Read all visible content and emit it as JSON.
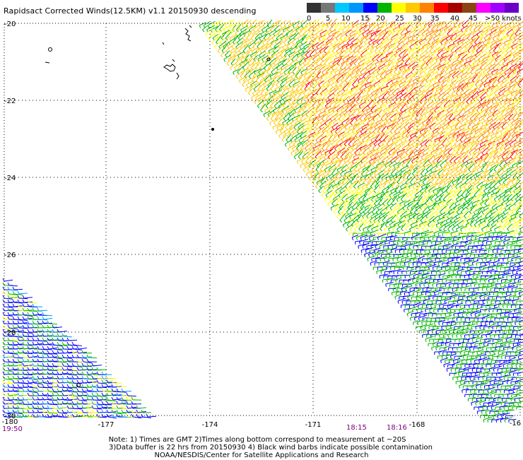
{
  "title": "Rapidsact Corrected Winds(12.5KM) v1.1 20150930 descending",
  "legend": {
    "colors": [
      "#333333",
      "#777777",
      "#00c8ff",
      "#0096ff",
      "#0000ff",
      "#00b400",
      "#ffff00",
      "#ffc800",
      "#ff8200",
      "#ff0000",
      "#a50000",
      "#8b4513",
      "#ff00ff",
      "#a000ff",
      "#6a00c8"
    ],
    "labels": [
      "0",
      "5",
      "10",
      "15",
      "20",
      "25",
      "30",
      "35",
      "40",
      "45",
      ">50 knots"
    ]
  },
  "axes": {
    "lat_labels": [
      "-20",
      "-22",
      "-24",
      "-26",
      "-28",
      "-30"
    ],
    "lon_labels": [
      "-180",
      "-177",
      "-174",
      "-171",
      "-168",
      "-16"
    ]
  },
  "times": {
    "left": "19:50",
    "mid1": "18:15",
    "mid2": "18:16"
  },
  "notes": [
    "Note: 1) Times are GMT 2)Times along bottom correspond to measurement at ~20S",
    "3)Data buffer is 22 hrs from 20150930 4) Black wind barbs indicate possible contamination",
    "NOAA/NESDIS/Center for Satellite Applications and Research"
  ]
}
